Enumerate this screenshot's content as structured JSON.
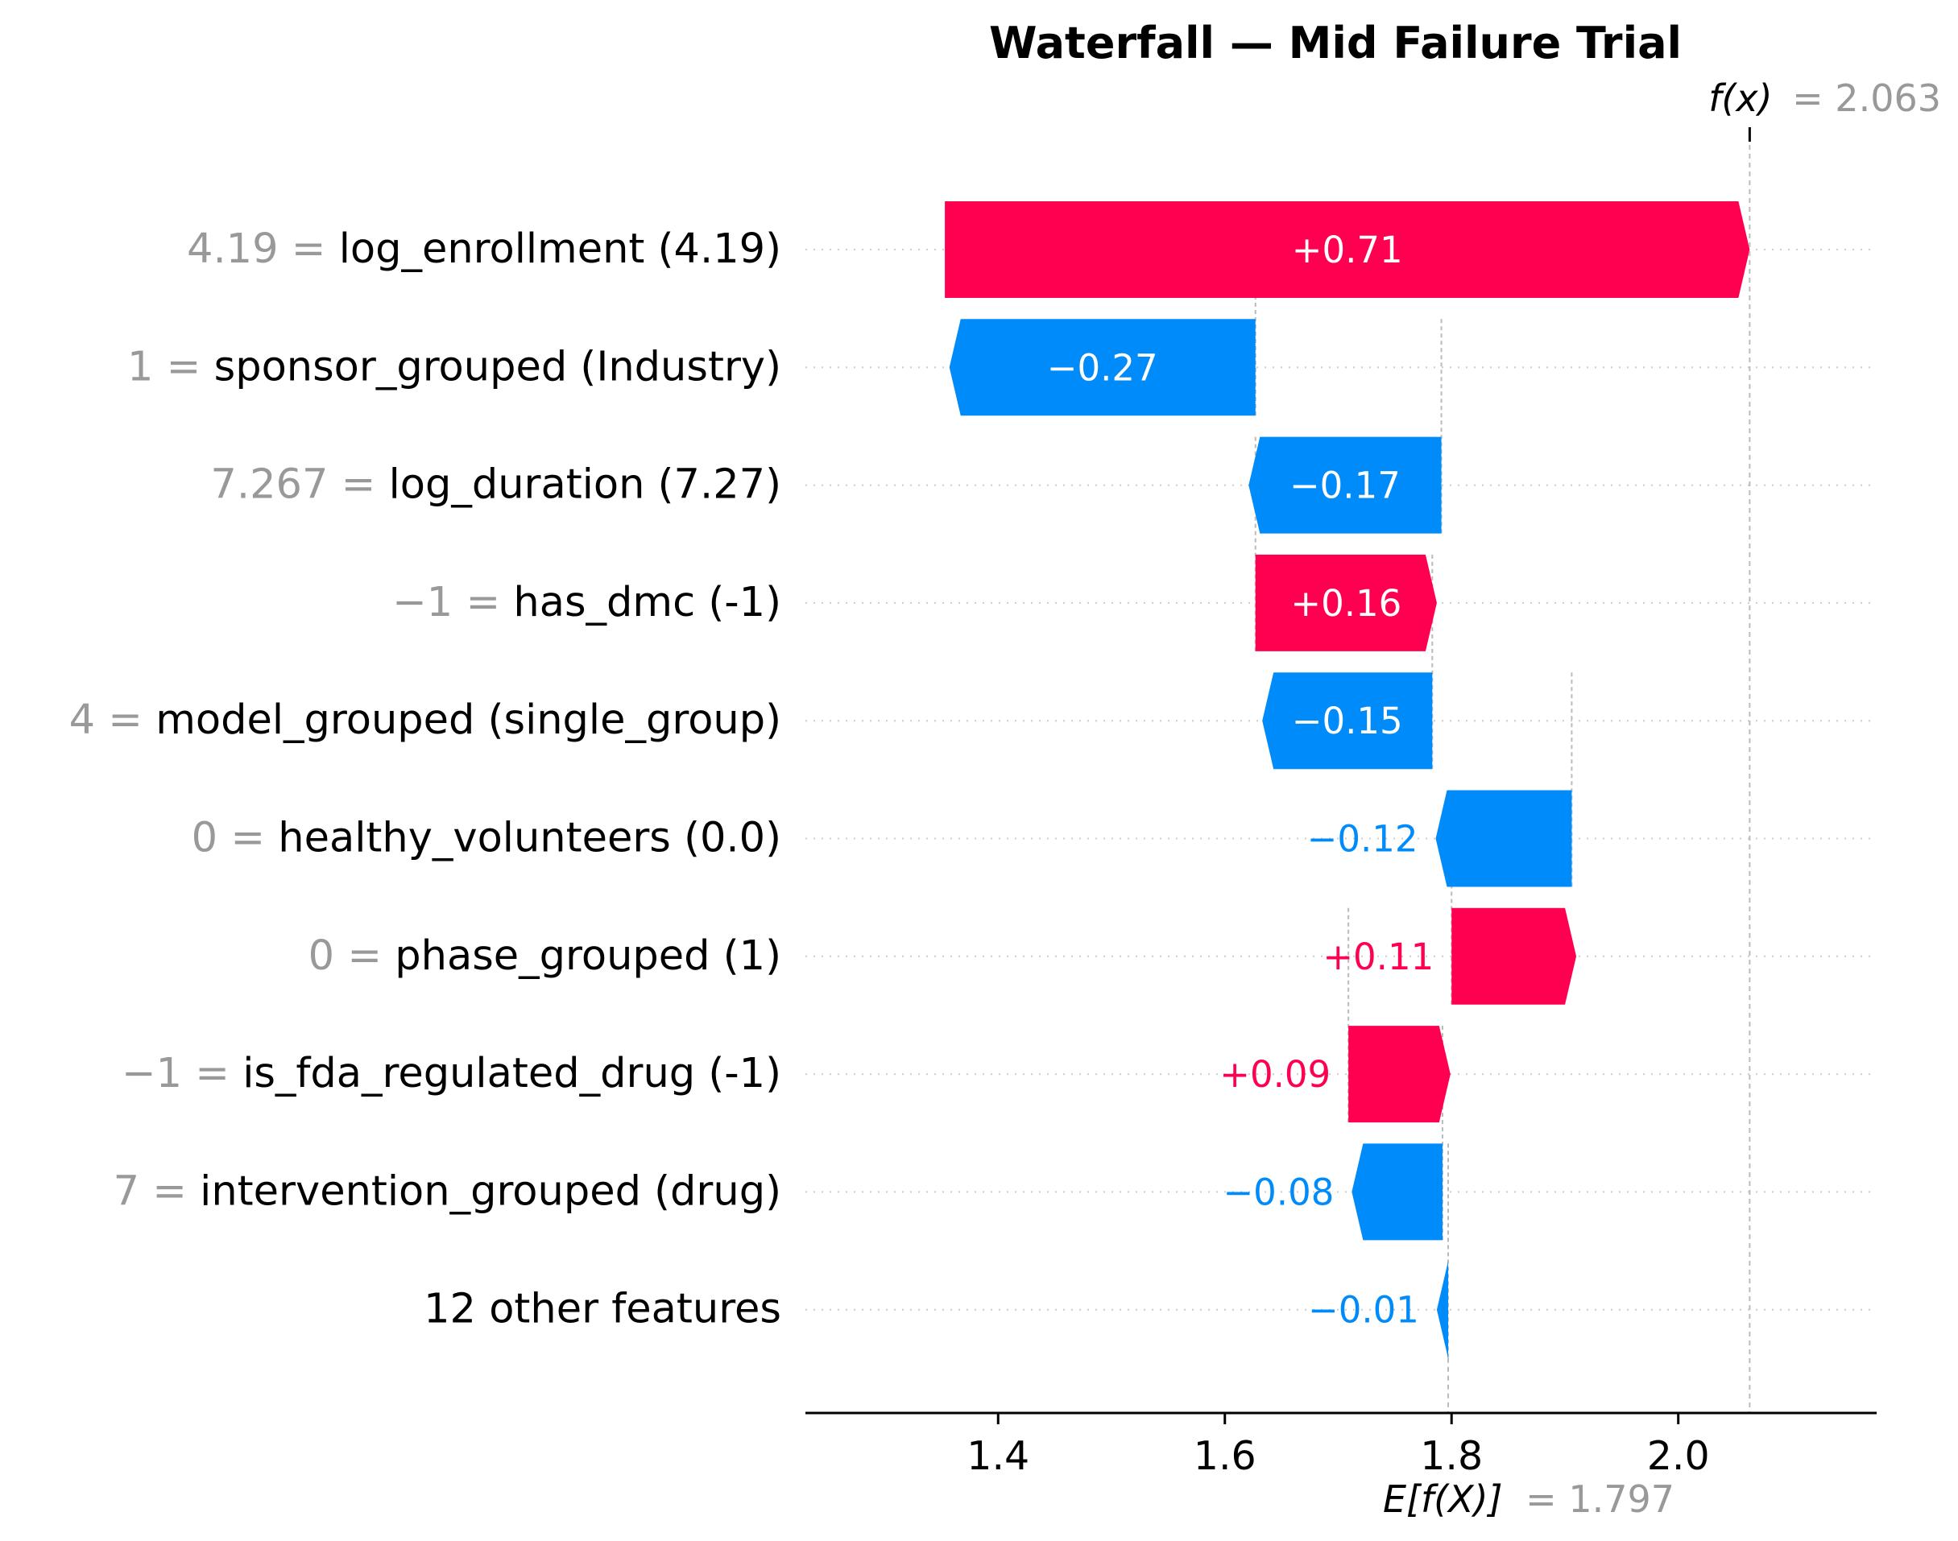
{
  "chart_data": {
    "type": "waterfall",
    "title": "Waterfall — Mid Failure Trial",
    "base_value": 1.797,
    "base_value_label": "E[f(X)]",
    "base_value_text": "= 1.797",
    "output_value": 2.063,
    "output_value_label": "f(x)",
    "output_value_text": "= 2.063",
    "xlim": [
      1.23,
      2.175
    ],
    "x_ticks": [
      1.4,
      1.6,
      1.8,
      2.0
    ],
    "x_tick_labels": [
      "1.4",
      "1.6",
      "1.8",
      "2.0"
    ],
    "colors": {
      "positive": "#ff0051",
      "negative": "#008bfb"
    },
    "features": [
      {
        "value_text": "4.19",
        "name": "log_enrollment (4.19)",
        "shap": 0.71,
        "start": 1.353,
        "label": "+0.71"
      },
      {
        "value_text": "1",
        "name": "sponsor_grouped (Industry)",
        "shap": -0.27,
        "start": 1.627,
        "label": "−0.27"
      },
      {
        "value_text": "7.267",
        "name": "log_duration (7.27)",
        "shap": -0.17,
        "start": 1.791,
        "label": "−0.17"
      },
      {
        "value_text": "−1",
        "name": "has_dmc (-1)",
        "shap": 0.16,
        "start": 1.627,
        "label": "+0.16"
      },
      {
        "value_text": "4",
        "name": "model_grouped (single_group)",
        "shap": -0.15,
        "start": 1.783,
        "label": "−0.15"
      },
      {
        "value_text": "0",
        "name": "healthy_volunteers (0.0)",
        "shap": -0.12,
        "start": 1.906,
        "label": "−0.12"
      },
      {
        "value_text": "0",
        "name": "phase_grouped (1)",
        "shap": 0.11,
        "start": 1.8,
        "label": "+0.11"
      },
      {
        "value_text": "−1",
        "name": "is_fda_regulated_drug (-1)",
        "shap": 0.09,
        "start": 1.709,
        "label": "+0.09"
      },
      {
        "value_text": "7",
        "name": "intervention_grouped (drug)",
        "shap": -0.08,
        "start": 1.792,
        "label": "−0.08"
      },
      {
        "value_text": "",
        "name": "12 other features",
        "shap": -0.01,
        "start": 1.797,
        "label": "−0.01"
      }
    ]
  }
}
